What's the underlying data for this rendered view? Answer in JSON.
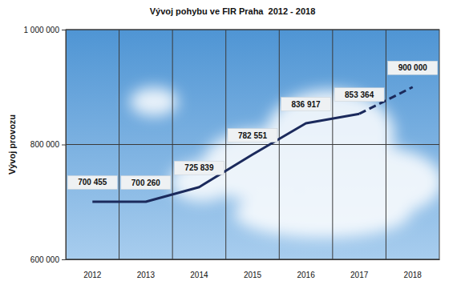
{
  "chart_data": {
    "type": "line",
    "title": "Vývoj pohybu ve FIR Praha  2012 - 2018",
    "y_label": "Vývoj provozu",
    "categories": [
      "2012",
      "2013",
      "2014",
      "2015",
      "2016",
      "2017",
      "2018"
    ],
    "series": [
      {
        "color": "#1b2a5c",
        "line_style": "solid",
        "values": [
          700455,
          700260,
          725839,
          782551,
          836917,
          853364,
          null
        ],
        "value_labels": [
          "700 455",
          "700 260",
          "725 839",
          "782 551",
          "836 917",
          "853 364",
          null
        ]
      },
      {
        "color": "#1b2a5c",
        "line_style": "dashed",
        "values": [
          null,
          null,
          null,
          null,
          null,
          853364,
          900000
        ],
        "value_labels": [
          null,
          null,
          null,
          null,
          null,
          null,
          "900 000"
        ]
      }
    ],
    "ylim": [
      600000,
      1000000
    ],
    "yticks": [
      {
        "value": 600000,
        "label": "600 000"
      },
      {
        "value": 800000,
        "label": "800 000"
      },
      {
        "value": 1000000,
        "label": "1 000 000"
      }
    ],
    "grid": true,
    "data_labels": true
  }
}
